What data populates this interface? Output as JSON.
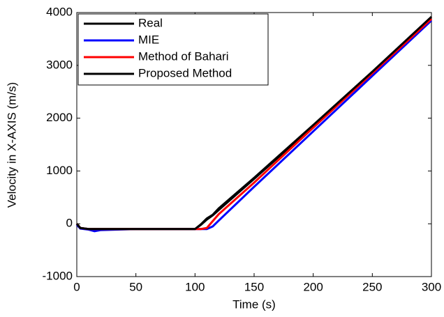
{
  "chart_data": {
    "type": "line",
    "xlabel": "Time (s)",
    "ylabel": "Velocity in X-AXIS (m/s)",
    "x": [
      0,
      3,
      10,
      15,
      20,
      50,
      100,
      105,
      110,
      115,
      120,
      150,
      200,
      250,
      300
    ],
    "series": [
      {
        "name": "Real",
        "color": "#000000",
        "values": [
          0,
          -80,
          -100,
          -100,
          -100,
          -100,
          -100,
          -20,
          80,
          160,
          260,
          850,
          1850,
          2850,
          3880
        ]
      },
      {
        "name": "MIE",
        "color": "#0000ff",
        "values": [
          -20,
          -90,
          -110,
          -140,
          -120,
          -100,
          -100,
          -100,
          -100,
          -50,
          60,
          700,
          1750,
          2800,
          3850
        ]
      },
      {
        "name": "Method of Bahari",
        "color": "#ff0000",
        "values": [
          0,
          -80,
          -100,
          -100,
          -100,
          -100,
          -100,
          -100,
          -80,
          50,
          180,
          780,
          1820,
          2850,
          3880
        ]
      },
      {
        "name": "Proposed Method",
        "color": "#000000",
        "values": [
          0,
          -80,
          -100,
          -100,
          -100,
          -100,
          -100,
          -10,
          100,
          170,
          290,
          870,
          1870,
          2880,
          3920
        ]
      }
    ],
    "xlim": [
      0,
      300
    ],
    "xticks": [
      0,
      50,
      100,
      150,
      200,
      250,
      300
    ],
    "ylim": [
      -1000,
      4000
    ],
    "yticks": [
      -1000,
      0,
      1000,
      2000,
      3000,
      4000
    ],
    "legend": "upper-left",
    "grid": false
  }
}
